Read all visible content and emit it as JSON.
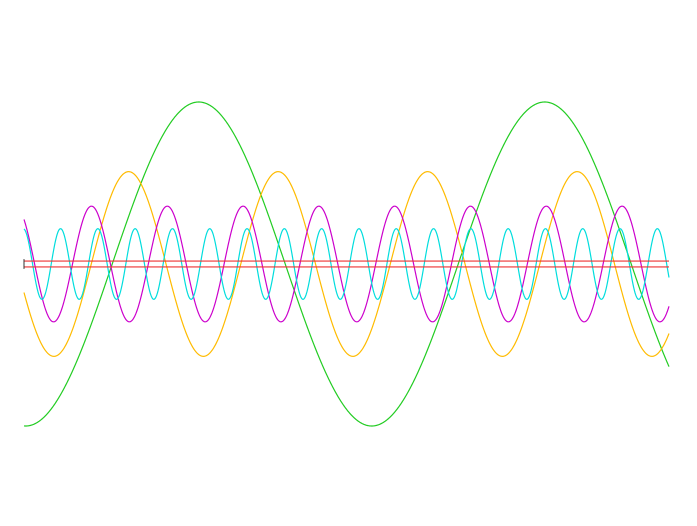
{
  "chart_data": {
    "type": "line",
    "title": "",
    "xlabel": "",
    "ylabel": "",
    "grid": false,
    "legend": "none",
    "xlim": [
      0,
      645
    ],
    "ylim": [
      -1.3,
      1.3
    ],
    "series": [
      {
        "color": "#22cc22",
        "wave": {
          "amplitude": 1.0,
          "period": 346,
          "phase": 0.745,
          "offset": 0.0
        }
      },
      {
        "color": "#ffbb00",
        "wave": {
          "amplitude": 0.57,
          "period": 149.5,
          "phase": 0.55,
          "offset": 0.0
        }
      },
      {
        "color": "#cc00cc",
        "wave": {
          "amplitude": 0.357,
          "period": 75.8,
          "phase": 0.36,
          "offset": 0.0
        }
      },
      {
        "color": "#00dddd",
        "wave": {
          "amplitude": 0.218,
          "period": 37.3,
          "phase": 0.27,
          "offset": 0.0
        }
      },
      {
        "color": "#ee3333",
        "wave": {
          "amplitude": 0.0,
          "period": 1,
          "phase": 0,
          "offset": 0.018
        }
      },
      {
        "color": "#ee3333",
        "wave": {
          "amplitude": 0.0,
          "period": 1,
          "phase": 0,
          "offset": -0.018
        }
      }
    ]
  }
}
